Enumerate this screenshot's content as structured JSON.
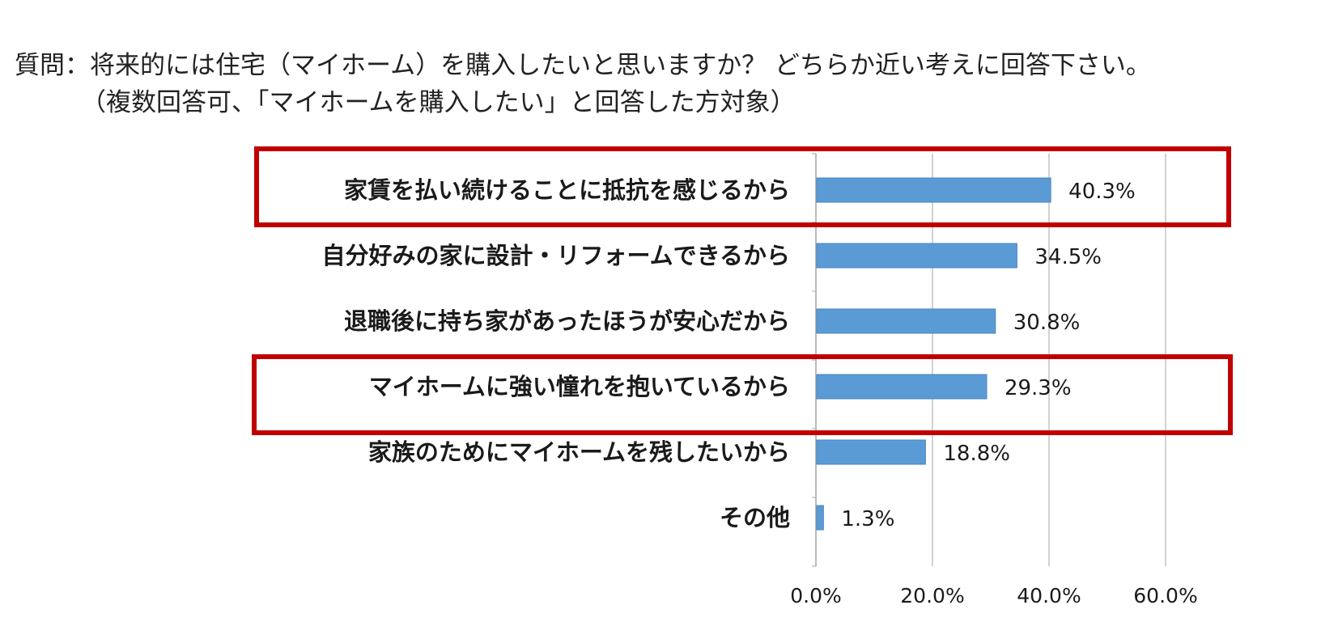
{
  "question": {
    "line1": "質問：将来的には住宅（マイホーム）を購入したいと思いますか？ どちらか近い考えに回答下さい。",
    "line2": "（複数回答可、「マイホームを購入したい」と回答した方対象）"
  },
  "chart_data": {
    "type": "bar",
    "orientation": "horizontal",
    "categories": [
      "家賃を払い続けることに抵抗を感じるから",
      "自分好みの家に設計・リフォームできるから",
      "退職後に持ち家があったほうが安心だから",
      "マイホームに強い憧れを抱いているから",
      "家族のためにマイホームを残したいから",
      "その他"
    ],
    "values": [
      40.3,
      34.5,
      30.8,
      29.3,
      18.8,
      1.3
    ],
    "data_labels": [
      "40.3%",
      "34.5%",
      "30.8%",
      "29.3%",
      "18.8%",
      "1.3%"
    ],
    "xlim": [
      0,
      60
    ],
    "xticks": [
      0,
      20,
      40,
      60
    ],
    "xtick_labels": [
      "0.0%",
      "20.0%",
      "40.0%",
      "60.0%"
    ],
    "grid": true,
    "highlighted_categories": [
      0,
      3
    ],
    "colors": {
      "bar": "#5b9bd5",
      "bar_edge": "#4a86c0",
      "grid": "#a6a6a6",
      "highlight": "#c00000"
    }
  }
}
